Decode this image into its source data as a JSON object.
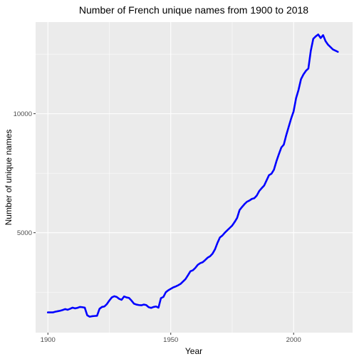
{
  "chart_data": {
    "type": "line",
    "title": "Number of French unique names from 1900 to 2018",
    "xlabel": "Year",
    "ylabel": "Number of unique names",
    "xlim": [
      1895,
      2024
    ],
    "ylim": [
      800,
      13850
    ],
    "x_ticks": [
      1900,
      1950,
      2000
    ],
    "y_ticks": [
      5000,
      10000
    ],
    "x_tick_labels": [
      "1900",
      "1950",
      "2000"
    ],
    "y_tick_labels": [
      "5000",
      "10000"
    ],
    "grid": true,
    "legend": "none",
    "colors": {
      "line": "#0000ff",
      "panel": "#ebebeb",
      "grid": "#ffffff"
    },
    "x": [
      1900,
      1901,
      1902,
      1903,
      1904,
      1905,
      1906,
      1907,
      1908,
      1909,
      1910,
      1911,
      1912,
      1913,
      1914,
      1915,
      1916,
      1917,
      1918,
      1919,
      1920,
      1921,
      1922,
      1923,
      1924,
      1925,
      1926,
      1927,
      1928,
      1929,
      1930,
      1931,
      1932,
      1933,
      1934,
      1935,
      1936,
      1937,
      1938,
      1939,
      1940,
      1941,
      1942,
      1943,
      1944,
      1945,
      1946,
      1947,
      1948,
      1949,
      1950,
      1951,
      1952,
      1953,
      1954,
      1955,
      1956,
      1957,
      1958,
      1959,
      1960,
      1961,
      1962,
      1963,
      1964,
      1965,
      1966,
      1967,
      1968,
      1969,
      1970,
      1971,
      1972,
      1973,
      1974,
      1975,
      1976,
      1977,
      1978,
      1979,
      1980,
      1981,
      1982,
      1983,
      1984,
      1985,
      1986,
      1987,
      1988,
      1989,
      1990,
      1991,
      1992,
      1993,
      1994,
      1995,
      1996,
      1997,
      1998,
      1999,
      2000,
      2001,
      2002,
      2003,
      2004,
      2005,
      2006,
      2007,
      2008,
      2009,
      2010,
      2011,
      2012,
      2013,
      2014,
      2015,
      2016,
      2017,
      2018
    ],
    "series": [
      {
        "values": [
          1650,
          1650,
          1650,
          1680,
          1700,
          1720,
          1750,
          1790,
          1760,
          1800,
          1850,
          1820,
          1840,
          1880,
          1870,
          1850,
          1530,
          1470,
          1490,
          1500,
          1510,
          1800,
          1880,
          1900,
          2000,
          2150,
          2280,
          2330,
          2300,
          2220,
          2180,
          2320,
          2280,
          2260,
          2150,
          2020,
          1980,
          1960,
          1950,
          1980,
          1960,
          1870,
          1840,
          1880,
          1900,
          1850,
          2250,
          2300,
          2500,
          2580,
          2640,
          2700,
          2740,
          2790,
          2850,
          2950,
          3050,
          3210,
          3380,
          3420,
          3520,
          3650,
          3720,
          3760,
          3850,
          3950,
          4010,
          4120,
          4300,
          4570,
          4800,
          4880,
          5000,
          5100,
          5200,
          5300,
          5450,
          5620,
          5950,
          6080,
          6200,
          6300,
          6350,
          6420,
          6450,
          6560,
          6750,
          6870,
          6980,
          7200,
          7420,
          7480,
          7650,
          8000,
          8300,
          8580,
          8700,
          9100,
          9450,
          9800,
          10100,
          10650,
          11000,
          11450,
          11650,
          11800,
          11900,
          12650,
          13150,
          13250,
          13330,
          13180,
          13300,
          13050,
          12900,
          12800,
          12700,
          12650,
          12600
        ]
      }
    ]
  }
}
